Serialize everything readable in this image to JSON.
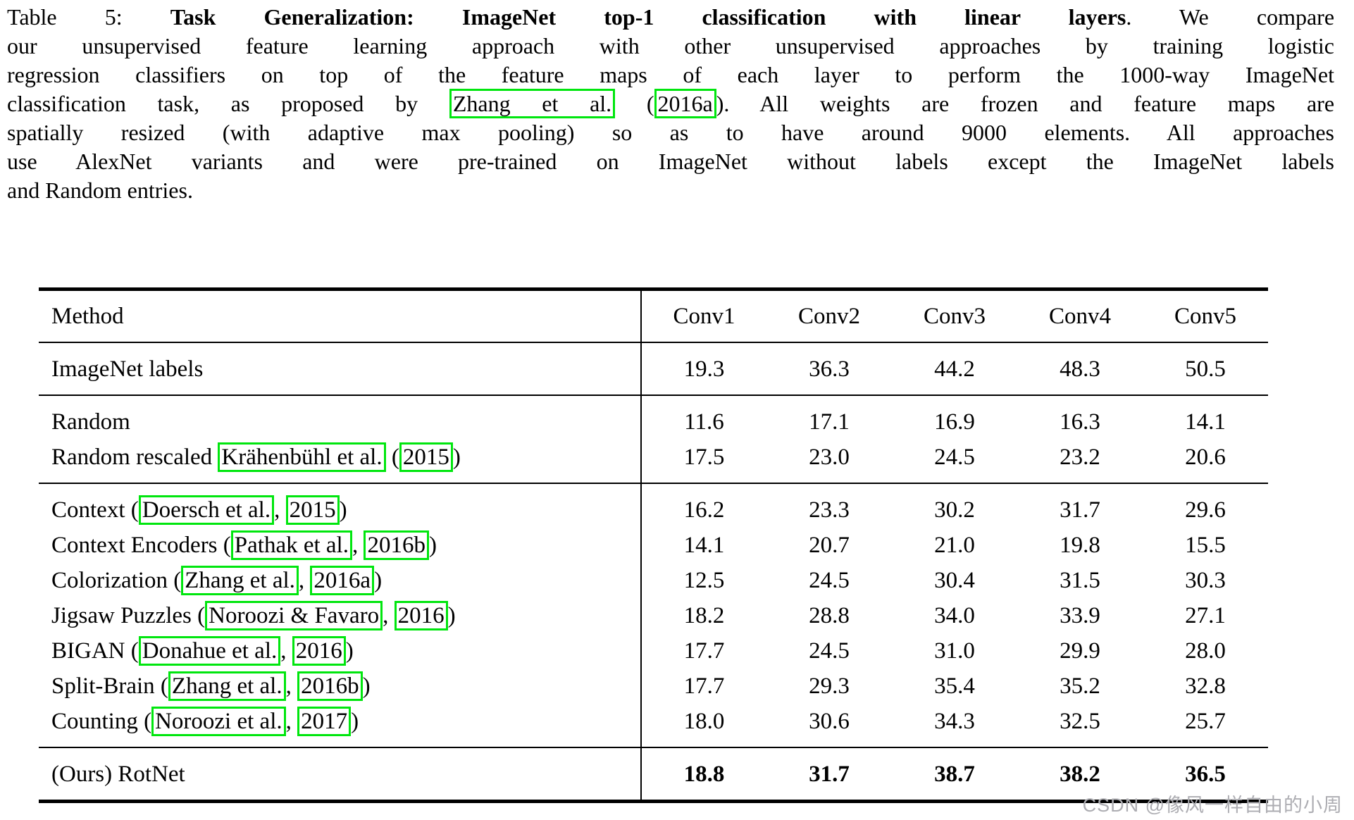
{
  "colors": {
    "background": "#ffffff",
    "text": "#000000",
    "link_box": "#00e60e",
    "watermark": "#adadb2"
  },
  "caption": {
    "lines": [
      {
        "last": false,
        "segments": [
          {
            "t": "Table 5: ",
            "s": "n"
          },
          {
            "t": "Task Generalization: ImageNet top-1 classification with linear layers",
            "s": "b"
          },
          {
            "t": ". We compare",
            "s": "n"
          }
        ]
      },
      {
        "last": false,
        "segments": [
          {
            "t": "our unsupervised feature learning approach with other unsupervised approaches by training logistic",
            "s": "n"
          }
        ]
      },
      {
        "last": false,
        "segments": [
          {
            "t": "regression classifiers on top of the feature maps of each layer to perform the 1000-way ImageNet",
            "s": "n"
          }
        ]
      },
      {
        "last": false,
        "segments": [
          {
            "t": "classification task, as proposed by ",
            "s": "n"
          },
          {
            "t": "Zhang et al.",
            "s": "link"
          },
          {
            "t": " (",
            "s": "n"
          },
          {
            "t": "2016a",
            "s": "link"
          },
          {
            "t": "). All weights are frozen and feature maps are",
            "s": "n"
          }
        ]
      },
      {
        "last": false,
        "segments": [
          {
            "t": "spatially resized (with adaptive max pooling) so as to have around 9000 elements. All approaches",
            "s": "n"
          }
        ]
      },
      {
        "last": false,
        "segments": [
          {
            "t": "use AlexNet variants and were pre-trained on ImageNet without labels except the ImageNet labels",
            "s": "n"
          }
        ]
      },
      {
        "last": true,
        "segments": [
          {
            "t": "and Random entries.",
            "s": "n"
          }
        ]
      }
    ]
  },
  "table": {
    "columns": [
      "Method",
      "Conv1",
      "Conv2",
      "Conv3",
      "Conv4",
      "Conv5"
    ],
    "groups": [
      {
        "rows": [
          {
            "bold": false,
            "method": [
              {
                "t": "ImageNet labels",
                "s": "n"
              }
            ],
            "values": [
              "19.3",
              "36.3",
              "44.2",
              "48.3",
              "50.5"
            ]
          }
        ]
      },
      {
        "rows": [
          {
            "bold": false,
            "method": [
              {
                "t": "Random",
                "s": "n"
              }
            ],
            "values": [
              "11.6",
              "17.1",
              "16.9",
              "16.3",
              "14.1"
            ]
          },
          {
            "bold": false,
            "method": [
              {
                "t": "Random rescaled ",
                "s": "n"
              },
              {
                "t": "Krähenbühl et al.",
                "s": "link"
              },
              {
                "t": " (",
                "s": "n"
              },
              {
                "t": "2015",
                "s": "link"
              },
              {
                "t": ")",
                "s": "n"
              }
            ],
            "values": [
              "17.5",
              "23.0",
              "24.5",
              "23.2",
              "20.6"
            ]
          }
        ]
      },
      {
        "rows": [
          {
            "bold": false,
            "method": [
              {
                "t": "Context (",
                "s": "n"
              },
              {
                "t": "Doersch et al.",
                "s": "link"
              },
              {
                "t": ", ",
                "s": "n"
              },
              {
                "t": "2015",
                "s": "link"
              },
              {
                "t": ")",
                "s": "n"
              }
            ],
            "values": [
              "16.2",
              "23.3",
              "30.2",
              "31.7",
              "29.6"
            ]
          },
          {
            "bold": false,
            "method": [
              {
                "t": "Context Encoders (",
                "s": "n"
              },
              {
                "t": "Pathak et al.",
                "s": "link"
              },
              {
                "t": ", ",
                "s": "n"
              },
              {
                "t": "2016b",
                "s": "link"
              },
              {
                "t": ")",
                "s": "n"
              }
            ],
            "values": [
              "14.1",
              "20.7",
              "21.0",
              "19.8",
              "15.5"
            ]
          },
          {
            "bold": false,
            "method": [
              {
                "t": "Colorization (",
                "s": "n"
              },
              {
                "t": "Zhang et al.",
                "s": "link"
              },
              {
                "t": ", ",
                "s": "n"
              },
              {
                "t": "2016a",
                "s": "link"
              },
              {
                "t": ")",
                "s": "n"
              }
            ],
            "values": [
              "12.5",
              "24.5",
              "30.4",
              "31.5",
              "30.3"
            ]
          },
          {
            "bold": false,
            "method": [
              {
                "t": "Jigsaw Puzzles (",
                "s": "n"
              },
              {
                "t": "Noroozi & Favaro",
                "s": "link"
              },
              {
                "t": ", ",
                "s": "n"
              },
              {
                "t": "2016",
                "s": "link"
              },
              {
                "t": ")",
                "s": "n"
              }
            ],
            "values": [
              "18.2",
              "28.8",
              "34.0",
              "33.9",
              "27.1"
            ]
          },
          {
            "bold": false,
            "method": [
              {
                "t": "BIGAN (",
                "s": "n"
              },
              {
                "t": "Donahue et al.",
                "s": "link"
              },
              {
                "t": ", ",
                "s": "n"
              },
              {
                "t": "2016",
                "s": "link"
              },
              {
                "t": ")",
                "s": "n"
              }
            ],
            "values": [
              "17.7",
              "24.5",
              "31.0",
              "29.9",
              "28.0"
            ]
          },
          {
            "bold": false,
            "method": [
              {
                "t": "Split-Brain (",
                "s": "n"
              },
              {
                "t": "Zhang et al.",
                "s": "link"
              },
              {
                "t": ", ",
                "s": "n"
              },
              {
                "t": "2016b",
                "s": "link"
              },
              {
                "t": ")",
                "s": "n"
              }
            ],
            "values": [
              "17.7",
              "29.3",
              "35.4",
              "35.2",
              "32.8"
            ]
          },
          {
            "bold": false,
            "method": [
              {
                "t": "Counting (",
                "s": "n"
              },
              {
                "t": "Noroozi et al.",
                "s": "link"
              },
              {
                "t": ", ",
                "s": "n"
              },
              {
                "t": "2017",
                "s": "link"
              },
              {
                "t": ")",
                "s": "n"
              }
            ],
            "values": [
              "18.0",
              "30.6",
              "34.3",
              "32.5",
              "25.7"
            ]
          }
        ]
      },
      {
        "rows": [
          {
            "bold": true,
            "method": [
              {
                "t": "(Ours) RotNet",
                "s": "n"
              }
            ],
            "values": [
              "18.8",
              "31.7",
              "38.7",
              "38.2",
              "36.5"
            ]
          }
        ]
      }
    ]
  },
  "watermark": {
    "text": "CSDN @像风一样自由的小周"
  }
}
